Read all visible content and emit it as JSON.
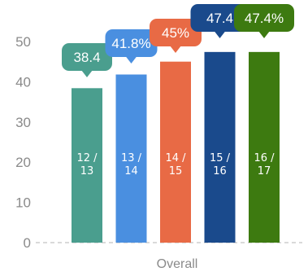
{
  "chart_data": {
    "type": "bar",
    "categories": [
      "Overall"
    ],
    "ylim": [
      0,
      55
    ],
    "yticks": [
      0,
      10,
      20,
      30,
      40,
      50
    ],
    "grid": false,
    "series": [
      {
        "label": "12 /\n13",
        "value": 38.4,
        "value_label": "38.4",
        "color": "#4a9e8e"
      },
      {
        "label": "13 /\n14",
        "value": 41.8,
        "value_label": "41.8%",
        "color": "#4a8fe0"
      },
      {
        "label": "14 /\n15",
        "value": 45.0,
        "value_label": "45%",
        "color": "#e86a45"
      },
      {
        "label": "15 /\n16",
        "value": 47.4,
        "value_label": "47.4",
        "color": "#1a4a8c"
      },
      {
        "label": "16 /\n17",
        "value": 47.4,
        "value_label": "47.4%",
        "color": "#3d7a10"
      }
    ]
  }
}
